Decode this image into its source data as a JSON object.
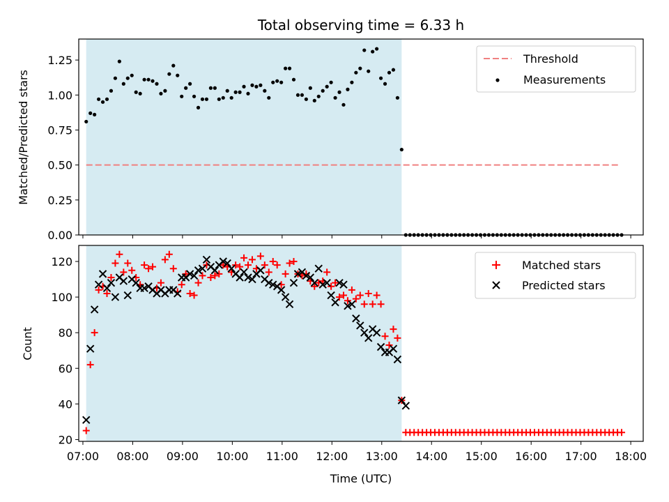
{
  "title": "Total observing time = 6.33 h",
  "xlabel": "Time (UTC)",
  "colors": {
    "observing_span": "#add8e6",
    "threshold": "#f08080",
    "measurements": "#000000",
    "matched": "#ff0000",
    "predicted": "#000000"
  },
  "chart_data": [
    {
      "type": "scatter",
      "ylabel": "Matched/Predicted stars",
      "ylim": [
        0,
        1.4
      ],
      "yticks": [
        "0.00",
        "0.25",
        "0.50",
        "0.75",
        "1.00",
        "1.25"
      ],
      "xlim": [
        "06:55",
        "18:15"
      ],
      "observing_span": [
        "07:04",
        "13:24"
      ],
      "legend": [
        "Threshold",
        "Measurements"
      ],
      "legend_position": "top-right",
      "threshold": {
        "name": "Threshold",
        "value": 0.5,
        "x": [
          "07:04",
          "17:45"
        ]
      },
      "measurements": {
        "name": "Measurements",
        "y": [
          0.81,
          0.87,
          0.86,
          0.97,
          0.95,
          0.97,
          1.03,
          1.12,
          1.24,
          1.08,
          1.12,
          1.14,
          1.02,
          1.01,
          1.11,
          1.11,
          1.1,
          1.08,
          1.01,
          1.03,
          1.15,
          1.21,
          1.14,
          0.99,
          1.05,
          1.08,
          0.99,
          0.91,
          0.97,
          0.97,
          1.05,
          1.05,
          0.97,
          0.98,
          1.03,
          0.98,
          1.02,
          1.02,
          1.06,
          1.01,
          1.07,
          1.06,
          1.07,
          1.03,
          0.98,
          1.09,
          1.1,
          1.09,
          1.19,
          1.19,
          1.11,
          1.0,
          1.0,
          0.97,
          1.05,
          0.96,
          0.99,
          1.03,
          1.06,
          1.09,
          0.98,
          1.02,
          0.93,
          1.04,
          1.09,
          1.16,
          1.19,
          1.32,
          1.17,
          1.31,
          1.33,
          1.12,
          1.08,
          1.16,
          1.18,
          0.98,
          0.61,
          0.0,
          0.0,
          0.0,
          0.0,
          0.0,
          0.0,
          0.0,
          0.0,
          0.0,
          0.0,
          0.0,
          0.0,
          0.0,
          0.0,
          0.0,
          0.0,
          0.0,
          0.0,
          0.0,
          0.0,
          0.0,
          0.0,
          0.0,
          0.0,
          0.0,
          0.0,
          0.0,
          0.0,
          0.0,
          0.0,
          0.0,
          0.0,
          0.0,
          0.0,
          0.0,
          0.0,
          0.0,
          0.0,
          0.0,
          0.0,
          0.0,
          0.0,
          0.0,
          0.0,
          0.0,
          0.0,
          0.0,
          0.0,
          0.0,
          0.0,
          0.0,
          0.0,
          0.0
        ]
      }
    },
    {
      "type": "scatter",
      "ylabel": "Count",
      "ylim": [
        19,
        129
      ],
      "yticks": [
        "20",
        "40",
        "60",
        "80",
        "100",
        "120"
      ],
      "xlim": [
        "06:55",
        "18:15"
      ],
      "xticks": [
        "07:00",
        "08:00",
        "09:00",
        "10:00",
        "11:00",
        "12:00",
        "13:00",
        "14:00",
        "15:00",
        "16:00",
        "17:00",
        "18:00"
      ],
      "observing_span": [
        "07:04",
        "13:24"
      ],
      "legend": [
        "Matched stars",
        "Predicted stars"
      ],
      "legend_position": "top-right",
      "series": [
        {
          "name": "Matched stars",
          "marker": "+",
          "values": [
            25,
            62,
            80,
            104,
            106,
            102,
            111,
            119,
            124,
            114,
            119,
            115,
            111,
            107,
            118,
            116,
            117,
            105,
            108,
            121,
            124,
            116,
            103,
            107,
            113,
            102,
            101,
            108,
            112,
            118,
            111,
            112,
            113,
            118,
            117,
            114,
            118,
            117,
            122,
            118,
            121,
            116,
            123,
            118,
            114,
            120,
            118,
            107,
            113,
            119,
            120,
            113,
            112,
            113,
            109,
            106,
            108,
            109,
            114,
            106,
            108,
            100,
            101,
            98,
            104,
            99,
            101,
            96,
            102,
            96,
            101,
            96,
            78,
            73,
            82,
            77,
            42,
            24,
            24,
            24,
            24,
            24,
            24,
            24,
            24,
            24,
            24,
            24,
            24,
            24,
            24,
            24,
            24,
            24,
            24,
            24,
            24,
            24,
            24,
            24,
            24,
            24,
            24,
            24,
            24,
            24,
            24,
            24,
            24,
            24,
            24,
            24,
            24,
            24,
            24,
            24,
            24,
            24,
            24,
            24,
            24,
            24,
            24,
            24,
            24,
            24,
            24,
            24,
            24,
            24
          ]
        },
        {
          "name": "Predicted stars",
          "marker": "x",
          "values": [
            31,
            71,
            93,
            107,
            113,
            105,
            108,
            100,
            111,
            109,
            101,
            110,
            108,
            105,
            105,
            106,
            104,
            102,
            104,
            102,
            104,
            104,
            102,
            111,
            111,
            113,
            112,
            115,
            116,
            121,
            117,
            115,
            118,
            120,
            119,
            116,
            113,
            111,
            114,
            111,
            110,
            113,
            115,
            110,
            108,
            107,
            106,
            104,
            100,
            96,
            108,
            113,
            114,
            112,
            111,
            108,
            116,
            107,
            108,
            101,
            97,
            108,
            107,
            95,
            96,
            88,
            84,
            80,
            77,
            82,
            80,
            72,
            69,
            69,
            71,
            65,
            42,
            39
          ]
        }
      ]
    }
  ]
}
